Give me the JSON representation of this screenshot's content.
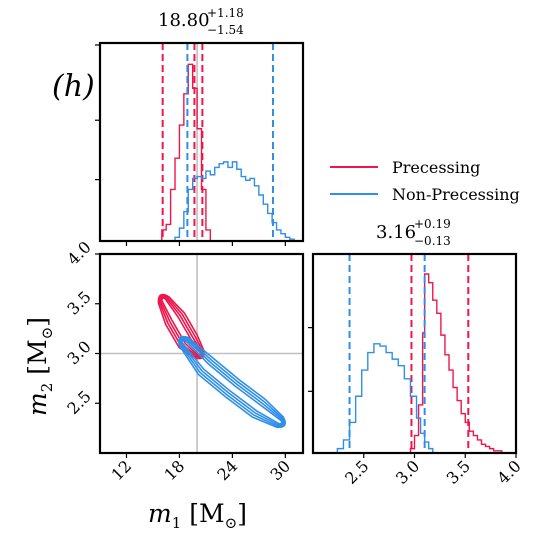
{
  "panel_tag": "(h)",
  "colors": {
    "precessing": "#f0164a",
    "non_precessing": "#2f8fe8",
    "truth": "#c0c0c0"
  },
  "legend": {
    "entries": [
      "Precessing",
      "Non-Precessing"
    ]
  },
  "titles": {
    "m1": {
      "value": "18.80",
      "upper": "+1.18",
      "lower": "−1.54"
    },
    "m2": {
      "value": "3.16",
      "upper": "+0.19",
      "lower": "−0.13"
    }
  },
  "axis_labels": {
    "m1": {
      "var": "m",
      "sub": "1",
      "unit": "[M",
      "sun": "⊙",
      "close": "]"
    },
    "m2": {
      "var": "m",
      "sub": "2",
      "unit": "[M",
      "sun": "⊙",
      "close": "]"
    }
  },
  "chart_data": [
    {
      "type": "histogram",
      "panel": "m1-marginal",
      "xlim": [
        9,
        32
      ],
      "truth": 20,
      "series": [
        {
          "name": "Precessing",
          "color": "#f0164a",
          "bins": [
            [
              15.5,
              0
            ],
            [
              16,
              0.06
            ],
            [
              16.5,
              0.09
            ],
            [
              17,
              0.28
            ],
            [
              17.5,
              0.45
            ],
            [
              18,
              0.63
            ],
            [
              18.5,
              0.8
            ],
            [
              19,
              0.96
            ],
            [
              19.5,
              0.83
            ],
            [
              20,
              0.61
            ],
            [
              20.5,
              0.28
            ],
            [
              21,
              0.06
            ],
            [
              21.5,
              0
            ]
          ],
          "quantiles": [
            16.1,
            19.7,
            20.6
          ]
        },
        {
          "name": "Non-Precessing",
          "color": "#2f8fe8",
          "bins": [
            [
              17.5,
              0.02
            ],
            [
              18,
              0.07
            ],
            [
              18.5,
              0.16
            ],
            [
              19,
              0.28
            ],
            [
              19.5,
              0.34
            ],
            [
              20,
              0.35
            ],
            [
              20.5,
              0.34
            ],
            [
              21,
              0.38
            ],
            [
              21.5,
              0.36
            ],
            [
              22,
              0.4
            ],
            [
              22.5,
              0.42
            ],
            [
              23,
              0.43
            ],
            [
              23.5,
              0.4
            ],
            [
              24,
              0.43
            ],
            [
              24.5,
              0.39
            ],
            [
              25,
              0.35
            ],
            [
              25.5,
              0.33
            ],
            [
              26,
              0.34
            ],
            [
              26.5,
              0.3
            ],
            [
              27,
              0.25
            ],
            [
              27.5,
              0.2
            ],
            [
              28,
              0.15
            ],
            [
              28.5,
              0.1
            ],
            [
              29,
              0.06
            ],
            [
              29.5,
              0.04
            ],
            [
              30,
              0.02
            ],
            [
              30.5,
              0.01
            ],
            [
              31,
              0
            ]
          ],
          "quantiles": [
            18.9,
            28.6
          ]
        }
      ]
    },
    {
      "type": "contour",
      "panel": "m1-m2-joint",
      "xlabel": "m1 [M⊙]",
      "ylabel": "m2 [M⊙]",
      "xlim": [
        9,
        32
      ],
      "ylim": [
        2.0,
        4.0
      ],
      "xticks": [
        "12",
        "18",
        "24",
        "30"
      ],
      "yticks": [
        "2.5",
        "3.0",
        "3.5",
        "4.0"
      ],
      "truth": {
        "x": 20,
        "y": 3.0
      },
      "series": [
        {
          "name": "Precessing",
          "color": "#f0164a",
          "centerline": [
            [
              16.2,
              3.54
            ],
            [
              17.5,
              3.35
            ],
            [
              19,
              3.12
            ],
            [
              20.2,
              3.0
            ]
          ],
          "widths": [
            0.035,
            0.06,
            0.085,
            0.11
          ]
        },
        {
          "name": "Non-Precessing",
          "color": "#2f8fe8",
          "centerline": [
            [
              18.5,
              3.12
            ],
            [
              21,
              2.87
            ],
            [
              24,
              2.65
            ],
            [
              27,
              2.45
            ],
            [
              29.4,
              2.31
            ]
          ],
          "widths": [
            0.035,
            0.06,
            0.085,
            0.11
          ]
        }
      ]
    },
    {
      "type": "histogram",
      "panel": "m2-marginal",
      "xlim": [
        2.0,
        4.0
      ],
      "xticks": [
        "2.5",
        "3.0",
        "3.5",
        "4.0"
      ],
      "series": [
        {
          "name": "Precessing",
          "color": "#f0164a",
          "bins": [
            [
              2.92,
              0
            ],
            [
              2.96,
              0.02
            ],
            [
              3.0,
              0.08
            ],
            [
              3.04,
              0.22
            ],
            [
              3.08,
              0.55
            ],
            [
              3.1,
              0.82
            ],
            [
              3.14,
              0.78
            ],
            [
              3.18,
              0.7
            ],
            [
              3.22,
              0.64
            ],
            [
              3.26,
              0.54
            ],
            [
              3.3,
              0.45
            ],
            [
              3.34,
              0.38
            ],
            [
              3.38,
              0.3
            ],
            [
              3.42,
              0.24
            ],
            [
              3.46,
              0.18
            ],
            [
              3.5,
              0.14
            ],
            [
              3.54,
              0.1
            ],
            [
              3.58,
              0.08
            ],
            [
              3.62,
              0.06
            ],
            [
              3.66,
              0.04
            ],
            [
              3.7,
              0.03
            ],
            [
              3.74,
              0.02
            ],
            [
              3.78,
              0.01
            ],
            [
              3.82,
              0.01
            ],
            [
              3.86,
              0
            ]
          ],
          "quantiles": [
            2.97,
            3.53
          ]
        },
        {
          "name": "Non-Precessing",
          "color": "#2f8fe8",
          "bins": [
            [
              2.24,
              0.02
            ],
            [
              2.3,
              0.06
            ],
            [
              2.36,
              0.14
            ],
            [
              2.42,
              0.26
            ],
            [
              2.48,
              0.38
            ],
            [
              2.54,
              0.46
            ],
            [
              2.6,
              0.5
            ],
            [
              2.66,
              0.49
            ],
            [
              2.72,
              0.46
            ],
            [
              2.78,
              0.43
            ],
            [
              2.84,
              0.4
            ],
            [
              2.9,
              0.34
            ],
            [
              2.96,
              0.26
            ],
            [
              3.02,
              0.16
            ],
            [
              3.06,
              0.09
            ],
            [
              3.1,
              0.05
            ],
            [
              3.14,
              0.02
            ],
            [
              3.18,
              0
            ]
          ],
          "quantiles": [
            2.36,
            3.1
          ]
        }
      ]
    }
  ]
}
